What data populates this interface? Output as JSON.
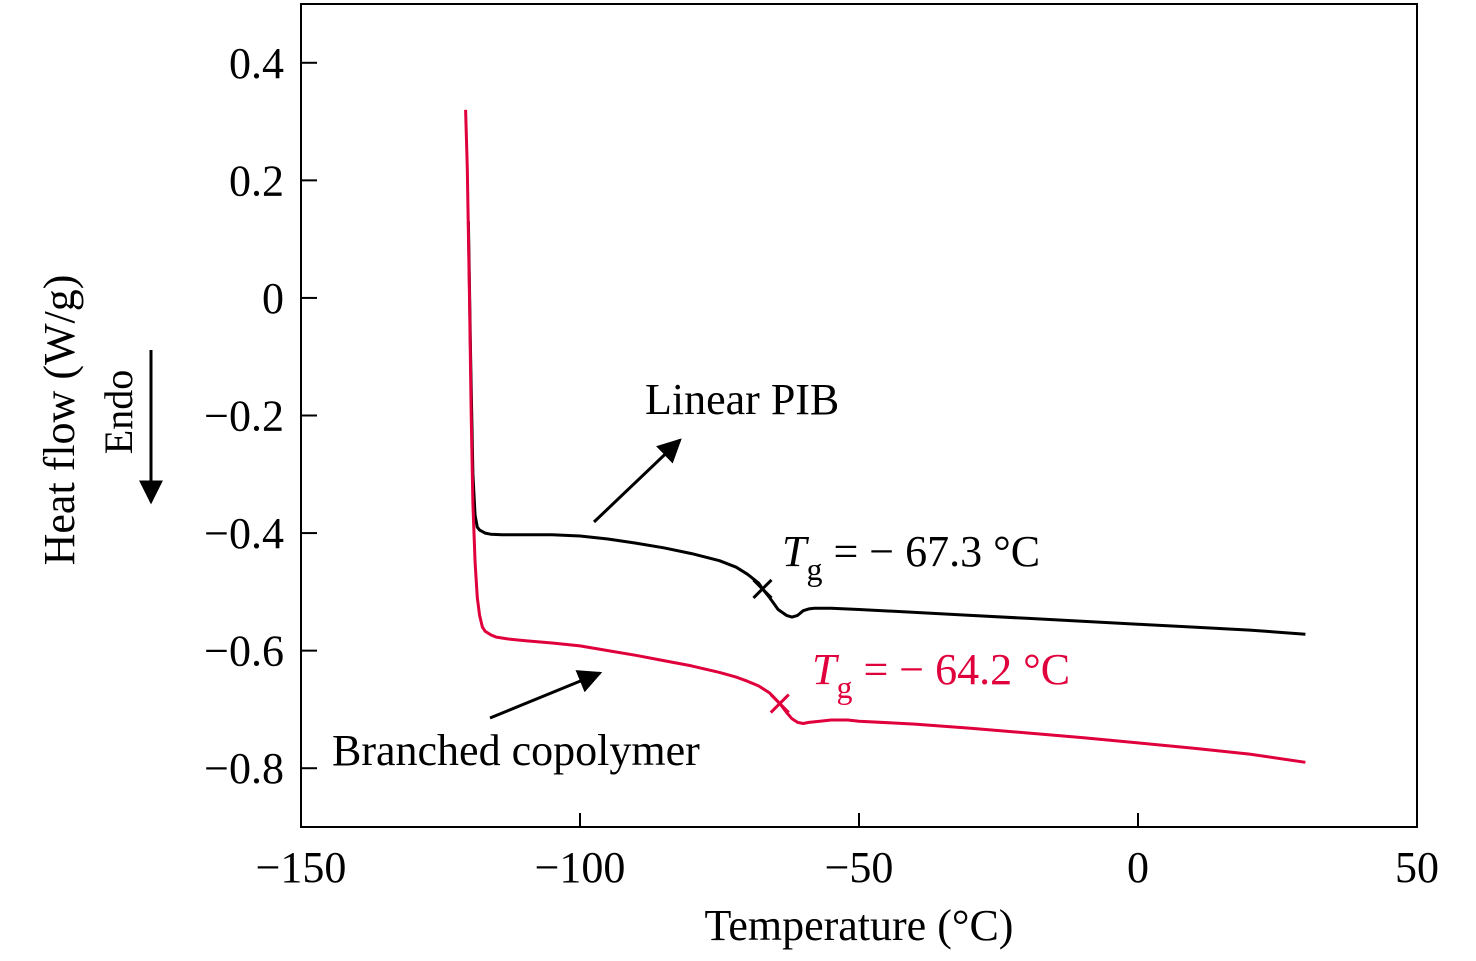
{
  "chart_data": {
    "type": "line",
    "xlabel": "Temperature (°C)",
    "ylabel": "Heat flow (W/g)",
    "endo_label": "Endo",
    "xlim": [
      -150,
      50
    ],
    "ylim": [
      -0.9,
      0.5
    ],
    "x_ticks": [
      -150,
      -100,
      -50,
      0,
      50
    ],
    "y_ticks": [
      0.4,
      0.2,
      0,
      -0.2,
      -0.4,
      -0.6,
      -0.8
    ],
    "x_tick_labels": [
      "−150",
      "−100",
      "−50",
      "0",
      "50"
    ],
    "y_tick_labels": [
      "0.4",
      "0.2",
      "0",
      "−0.2",
      "−0.4",
      "−0.6",
      "−0.8"
    ],
    "grid": false,
    "series": [
      {
        "name": "Linear PIB",
        "color": "#000000",
        "x": [
          -120.0,
          -119.6,
          -119.2,
          -118.8,
          -118.4,
          -118,
          -117,
          -116,
          -114,
          -110,
          -105,
          -100,
          -95,
          -90,
          -85,
          -80,
          -75,
          -72,
          -70,
          -68,
          -67.3,
          -66,
          -64.5,
          -63,
          -62,
          -61,
          -60,
          -59,
          -58,
          -55,
          -50,
          -40,
          -30,
          -20,
          -10,
          0,
          10,
          20,
          30
        ],
        "y": [
          0.13,
          -0.1,
          -0.3,
          -0.37,
          -0.39,
          -0.395,
          -0.4,
          -0.402,
          -0.403,
          -0.403,
          -0.403,
          -0.405,
          -0.41,
          -0.417,
          -0.425,
          -0.435,
          -0.447,
          -0.458,
          -0.47,
          -0.485,
          -0.495,
          -0.51,
          -0.53,
          -0.54,
          -0.543,
          -0.54,
          -0.532,
          -0.529,
          -0.528,
          -0.528,
          -0.53,
          -0.535,
          -0.54,
          -0.545,
          -0.55,
          -0.555,
          -0.56,
          -0.565,
          -0.572
        ]
      },
      {
        "name": "Branched copolymer",
        "color": "#e0003c",
        "x": [
          -120.5,
          -120.2,
          -119.8,
          -119.5,
          -119.2,
          -118.8,
          -118.4,
          -118,
          -117.5,
          -117,
          -116,
          -115,
          -113,
          -110,
          -105,
          -100,
          -95,
          -90,
          -85,
          -80,
          -75,
          -72,
          -70,
          -68,
          -66,
          -64.2,
          -63,
          -62,
          -61,
          -60,
          -59,
          -57,
          -55,
          -52,
          -50,
          -40,
          -30,
          -20,
          -10,
          0,
          10,
          20,
          30
        ],
        "y": [
          0.32,
          0.22,
          0.0,
          -0.2,
          -0.35,
          -0.45,
          -0.51,
          -0.54,
          -0.56,
          -0.567,
          -0.573,
          -0.577,
          -0.58,
          -0.583,
          -0.587,
          -0.592,
          -0.6,
          -0.608,
          -0.617,
          -0.626,
          -0.637,
          -0.645,
          -0.652,
          -0.66,
          -0.672,
          -0.69,
          -0.705,
          -0.716,
          -0.722,
          -0.724,
          -0.722,
          -0.72,
          -0.718,
          -0.718,
          -0.72,
          -0.725,
          -0.732,
          -0.74,
          -0.748,
          -0.757,
          -0.766,
          -0.776,
          -0.79
        ]
      }
    ],
    "annotations": [
      {
        "id": "linear",
        "label": "Linear PIB",
        "tg_symbol": "T",
        "tg_subscript": "g",
        "tg_text": " = − 67.3 °C",
        "tg_x": -67.3,
        "tg_y": -0.495,
        "color": "#000000"
      },
      {
        "id": "branched",
        "label": "Branched copolymer",
        "tg_symbol": "T",
        "tg_subscript": "g",
        "tg_text": " = − 64.2 °C",
        "tg_x": -64.2,
        "tg_y": -0.69,
        "color": "#e0003c"
      }
    ]
  }
}
